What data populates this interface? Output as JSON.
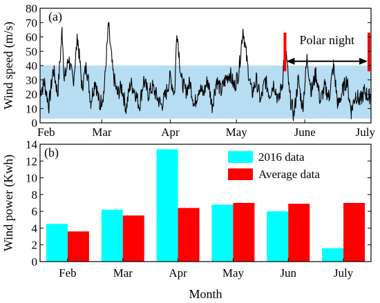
{
  "chart_data": [
    {
      "panel": "(a)",
      "type": "line",
      "ylabel": "Wind speed (m/s)",
      "ylim": [
        0,
        80
      ],
      "yticks": [
        0,
        10,
        20,
        30,
        40,
        50,
        60,
        70,
        80
      ],
      "x_tick_labels": [
        "Feb",
        "Mar",
        "Apr",
        "May",
        "June",
        "July"
      ],
      "x_tick_days": [
        0,
        28,
        59,
        89,
        120,
        150
      ],
      "xlim_days": [
        0,
        150
      ],
      "band": {
        "ymin": 3,
        "ymax": 40,
        "color": "#b7ddf2"
      },
      "annotation": {
        "text": "Polar night",
        "start_day": 111,
        "end_day": 150,
        "y": 43,
        "marker_color": "#ff0000"
      },
      "series": [
        {
          "color": "#000000",
          "anchors": [
            [
              0,
              22
            ],
            [
              2,
              28
            ],
            [
              4,
              12
            ],
            [
              6,
              38
            ],
            [
              8,
              20
            ],
            [
              10,
              65
            ],
            [
              11,
              30
            ],
            [
              13,
              45
            ],
            [
              15,
              28
            ],
            [
              17,
              60
            ],
            [
              19,
              25
            ],
            [
              21,
              40
            ],
            [
              23,
              15
            ],
            [
              25,
              30
            ],
            [
              27,
              12
            ],
            [
              29,
              22
            ],
            [
              31,
              68
            ],
            [
              33,
              35
            ],
            [
              35,
              20
            ],
            [
              37,
              25
            ],
            [
              39,
              10
            ],
            [
              41,
              28
            ],
            [
              43,
              22
            ],
            [
              45,
              12
            ],
            [
              47,
              30
            ],
            [
              49,
              20
            ],
            [
              51,
              25
            ],
            [
              53,
              18
            ],
            [
              55,
              12
            ],
            [
              57,
              20
            ],
            [
              59,
              32
            ],
            [
              61,
              20
            ],
            [
              62,
              66
            ],
            [
              64,
              30
            ],
            [
              66,
              22
            ],
            [
              68,
              28
            ],
            [
              70,
              12
            ],
            [
              72,
              25
            ],
            [
              74,
              20
            ],
            [
              76,
              30
            ],
            [
              78,
              12
            ],
            [
              80,
              30
            ],
            [
              82,
              22
            ],
            [
              84,
              30
            ],
            [
              86,
              35
            ],
            [
              88,
              25
            ],
            [
              90,
              35
            ],
            [
              92,
              66
            ],
            [
              94,
              40
            ],
            [
              96,
              20
            ],
            [
              98,
              30
            ],
            [
              100,
              15
            ],
            [
              102,
              30
            ],
            [
              104,
              20
            ],
            [
              106,
              28
            ],
            [
              108,
              15
            ],
            [
              110,
              30
            ],
            [
              111,
              60
            ],
            [
              113,
              20
            ],
            [
              115,
              5
            ],
            [
              117,
              30
            ],
            [
              119,
              10
            ],
            [
              121,
              45
            ],
            [
              123,
              22
            ],
            [
              125,
              35
            ],
            [
              127,
              15
            ],
            [
              129,
              25
            ],
            [
              131,
              18
            ],
            [
              133,
              40
            ],
            [
              135,
              12
            ],
            [
              137,
              22
            ],
            [
              139,
              30
            ],
            [
              141,
              8
            ],
            [
              143,
              20
            ],
            [
              145,
              15
            ],
            [
              147,
              22
            ],
            [
              149,
              18
            ],
            [
              150,
              20
            ]
          ]
        }
      ]
    },
    {
      "panel": "(b)",
      "type": "bar",
      "xlabel": "Month",
      "ylabel": "Wind power (Kwh)",
      "ylim": [
        0,
        14
      ],
      "yticks": [
        0,
        2,
        4,
        6,
        8,
        10,
        12,
        14
      ],
      "categories": [
        "Feb",
        "Mar",
        "Apr",
        "May",
        "Jun",
        "July"
      ],
      "legend_position": "top-right",
      "series": [
        {
          "name": "2016 data",
          "color": "#00ffff",
          "values": [
            4.5,
            6.2,
            13.4,
            6.8,
            6.0,
            1.6
          ]
        },
        {
          "name": "Average data",
          "color": "#ff0000",
          "values": [
            3.6,
            5.5,
            6.4,
            7.0,
            6.9,
            7.0
          ]
        }
      ]
    }
  ]
}
